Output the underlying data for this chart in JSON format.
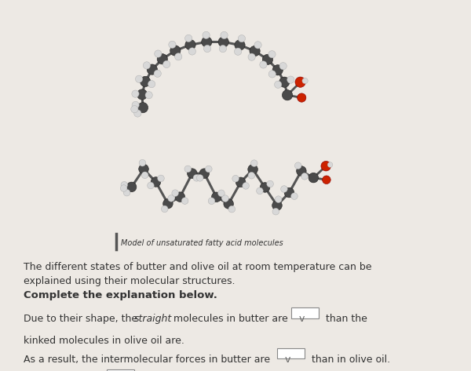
{
  "background_color": "#ede9e4",
  "caption": "Model of unsaturated fatty acid molecules",
  "paragraph1": "The different states of butter and olive oil at room temperature can be\nexplained using their molecular structures.",
  "heading": "Complete the explanation below.",
  "atom_dark_color": "#4a4a4a",
  "atom_light_color": "#d8d8d8",
  "atom_red_color": "#cc2200",
  "text_color": "#333333",
  "font_size_caption": 7,
  "font_size_body": 9,
  "font_size_heading": 9.5
}
